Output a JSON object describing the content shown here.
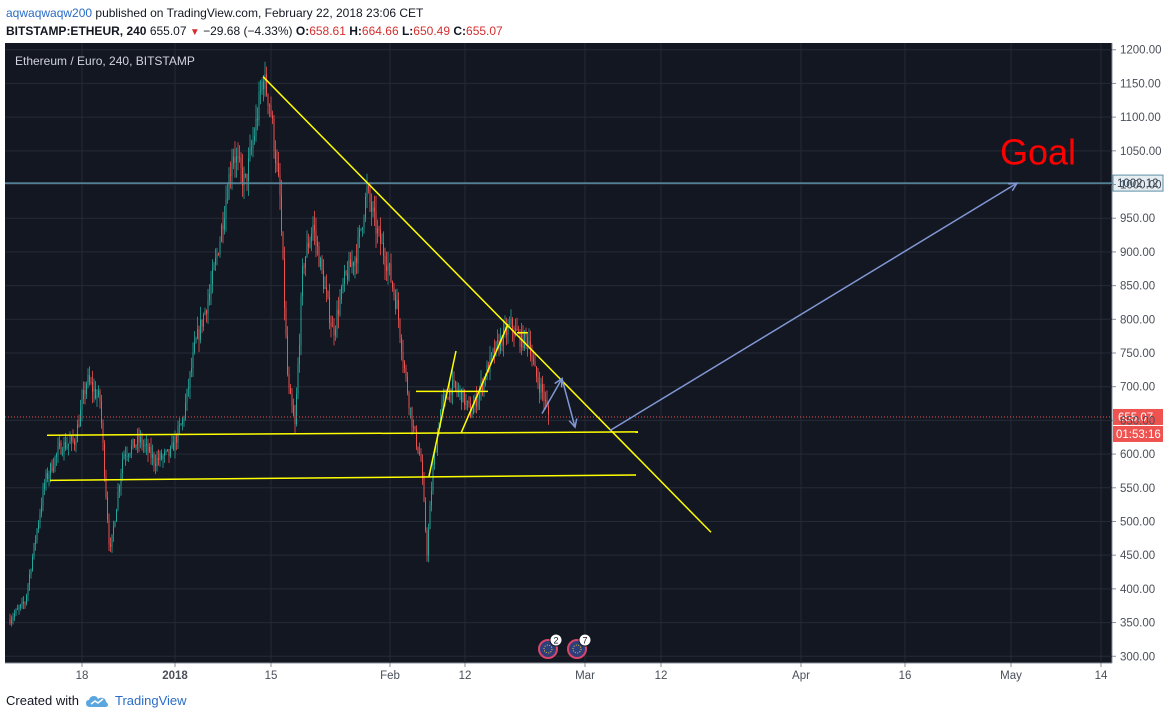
{
  "header": {
    "author": "aqwaqwaqw200",
    "published_text": "published on TradingView.com, February 22, 2018 23:06 CET",
    "symbol": "BITSTAMP:ETHEUR, 240",
    "last": "655.07",
    "change": "−29.68 (−4.33%)",
    "open_label": "O:",
    "open": "658.61",
    "high_label": "H:",
    "high": "664.66",
    "low_label": "L:",
    "low": "650.49",
    "close_label": "C:",
    "close": "655.07"
  },
  "footer": {
    "created_with": "Created with",
    "brand": "TradingView"
  },
  "chart_data": {
    "type": "candlestick",
    "title": "Ethereum / Euro, 240, BITSTAMP",
    "ylim": [
      290,
      1210
    ],
    "y_ticks": [
      300,
      350,
      400,
      450,
      500,
      550,
      600,
      650,
      700,
      750,
      800,
      850,
      900,
      950,
      1000,
      1050,
      1100,
      1150,
      1200
    ],
    "x_ticks": [
      {
        "label": "18",
        "x": 77
      },
      {
        "label": "2018",
        "x": 170
      },
      {
        "label": "15",
        "x": 266
      },
      {
        "label": "Feb",
        "x": 385
      },
      {
        "label": "12",
        "x": 460
      },
      {
        "label": "Mar",
        "x": 580
      },
      {
        "label": "12",
        "x": 656
      },
      {
        "label": "Apr",
        "x": 796
      },
      {
        "label": "16",
        "x": 900
      },
      {
        "label": "May",
        "x": 1006
      },
      {
        "label": "14",
        "x": 1096
      }
    ],
    "price_path": [
      {
        "x": 5,
        "y": 355
      },
      {
        "x": 20,
        "y": 380
      },
      {
        "x": 40,
        "y": 560
      },
      {
        "x": 55,
        "y": 610
      },
      {
        "x": 70,
        "y": 620
      },
      {
        "x": 82,
        "y": 710
      },
      {
        "x": 95,
        "y": 680
      },
      {
        "x": 105,
        "y": 450
      },
      {
        "x": 118,
        "y": 600
      },
      {
        "x": 135,
        "y": 620
      },
      {
        "x": 150,
        "y": 590
      },
      {
        "x": 165,
        "y": 600
      },
      {
        "x": 178,
        "y": 650
      },
      {
        "x": 190,
        "y": 760
      },
      {
        "x": 205,
        "y": 840
      },
      {
        "x": 215,
        "y": 920
      },
      {
        "x": 228,
        "y": 1050
      },
      {
        "x": 240,
        "y": 1000
      },
      {
        "x": 250,
        "y": 1080
      },
      {
        "x": 258,
        "y": 1160
      },
      {
        "x": 265,
        "y": 1120
      },
      {
        "x": 275,
        "y": 980
      },
      {
        "x": 283,
        "y": 700
      },
      {
        "x": 290,
        "y": 640
      },
      {
        "x": 298,
        "y": 880
      },
      {
        "x": 308,
        "y": 940
      },
      {
        "x": 318,
        "y": 860
      },
      {
        "x": 328,
        "y": 780
      },
      {
        "x": 340,
        "y": 860
      },
      {
        "x": 352,
        "y": 900
      },
      {
        "x": 362,
        "y": 990
      },
      {
        "x": 372,
        "y": 930
      },
      {
        "x": 383,
        "y": 880
      },
      {
        "x": 392,
        "y": 820
      },
      {
        "x": 400,
        "y": 720
      },
      {
        "x": 408,
        "y": 640
      },
      {
        "x": 416,
        "y": 590
      },
      {
        "x": 422,
        "y": 455
      },
      {
        "x": 428,
        "y": 580
      },
      {
        "x": 436,
        "y": 670
      },
      {
        "x": 446,
        "y": 700
      },
      {
        "x": 456,
        "y": 690
      },
      {
        "x": 466,
        "y": 660
      },
      {
        "x": 476,
        "y": 700
      },
      {
        "x": 486,
        "y": 740
      },
      {
        "x": 496,
        "y": 770
      },
      {
        "x": 506,
        "y": 790
      },
      {
        "x": 516,
        "y": 770
      },
      {
        "x": 524,
        "y": 770
      },
      {
        "x": 530,
        "y": 720
      },
      {
        "x": 538,
        "y": 690
      },
      {
        "x": 544,
        "y": 655
      }
    ],
    "current_price": 655.07,
    "current_price_label": "655.07",
    "countdown_label": "01:53:16",
    "horizontal_level": 1002.12,
    "horizontal_level_label": "1002.12",
    "annotation": "Goal",
    "yellow_lines": [
      {
        "x1": 258,
        "y1": 1160,
        "x2": 706,
        "y2": 484
      },
      {
        "x1": 42,
        "y1": 628,
        "x2": 633,
        "y2": 633
      },
      {
        "x1": 45,
        "y1": 561,
        "x2": 631,
        "y2": 569
      },
      {
        "x1": 424,
        "y1": 567,
        "x2": 451,
        "y2": 753
      },
      {
        "x1": 411,
        "y1": 693,
        "x2": 483,
        "y2": 693
      },
      {
        "x1": 456,
        "y1": 631,
        "x2": 503,
        "y2": 793
      },
      {
        "x1": 512,
        "y1": 780,
        "x2": 523,
        "y2": 780
      }
    ],
    "blue_path": [
      [
        537,
        660
      ],
      [
        557,
        712
      ],
      [
        570,
        640
      ]
    ],
    "blue_arrow": [
      [
        605,
        635
      ],
      [
        1012,
        1002
      ]
    ],
    "event_badges": [
      {
        "x": 543,
        "count": "2"
      },
      {
        "x": 572,
        "count": "7"
      }
    ],
    "colors": {
      "background": "#131722",
      "up": "#26a69a",
      "down": "#ef5350",
      "yellow": "#ffff00",
      "goal": "#ff0000",
      "level": "#5c8fa6",
      "blue_arrow": "#8197d4",
      "price_tag": "#ef5350"
    }
  }
}
